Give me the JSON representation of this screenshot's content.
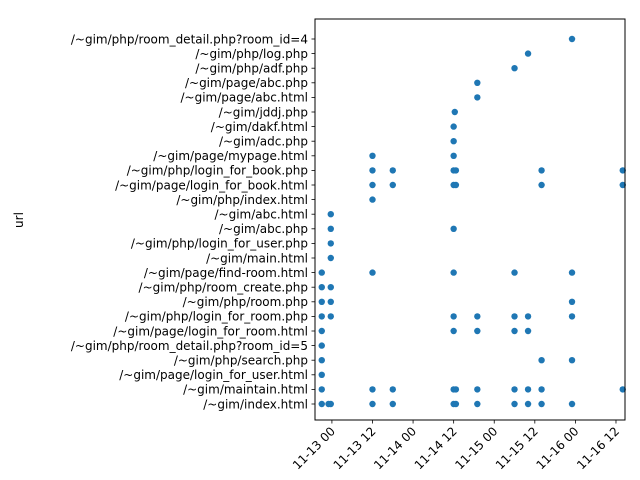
{
  "chart_data": {
    "type": "scatter",
    "title": "",
    "xlabel": "",
    "ylabel": "url",
    "grid": false,
    "x_ticks": [
      "11-13 00",
      "11-13 12",
      "11-14 00",
      "11-14 12",
      "11-15 00",
      "11-15 12",
      "11-16 00",
      "11-16 12"
    ],
    "x_tick_dates": [
      "2023-11-13T00:00",
      "2023-11-13T12:00",
      "2023-11-14T00:00",
      "2023-11-14T12:00",
      "2023-11-15T00:00",
      "2023-11-15T12:00",
      "2023-11-16T00:00",
      "2023-11-16T12:00"
    ],
    "xlim": [
      "2023-11-12T19:00",
      "2023-11-16T14:40"
    ],
    "categories": [
      "/~gim/index.html",
      "/~gim/maintain.html",
      "/~gim/page/login_for_user.html",
      "/~gim/php/search.php",
      "/~gim/php/room_detail.php?room_id=5",
      "/~gim/page/login_for_room.html",
      "/~gim/php/login_for_room.php",
      "/~gim/php/room.php",
      "/~gim/php/room_create.php",
      "/~gim/page/find-room.html",
      "/~gim/main.html",
      "/~gim/php/login_for_user.php",
      "/~gim/abc.php",
      "/~gim/abc.html",
      "/~gim/php/index.html",
      "/~gim/page/login_for_book.html",
      "/~gim/php/login_for_book.php",
      "/~gim/page/mypage.html",
      "/~gim/adc.php",
      "/~gim/dakf.html",
      "/~gim/jddj.php",
      "/~gim/page/abc.html",
      "/~gim/page/abc.php",
      "/~gim/php/adf.php",
      "/~gim/php/log.php",
      "/~gim/php/room_detail.php?room_id=4"
    ],
    "series": [
      {
        "color": "#1f77b4",
        "points": [
          {
            "x": "2023-11-12T21:00",
            "y": "/~gim/index.html"
          },
          {
            "x": "2023-11-12T23:00",
            "y": "/~gim/index.html"
          },
          {
            "x": "2023-11-12T23:40",
            "y": "/~gim/index.html"
          },
          {
            "x": "2023-11-13T12:00",
            "y": "/~gim/index.html"
          },
          {
            "x": "2023-11-13T18:00",
            "y": "/~gim/index.html"
          },
          {
            "x": "2023-11-14T12:00",
            "y": "/~gim/index.html"
          },
          {
            "x": "2023-11-14T12:40",
            "y": "/~gim/index.html"
          },
          {
            "x": "2023-11-14T19:00",
            "y": "/~gim/index.html"
          },
          {
            "x": "2023-11-15T06:00",
            "y": "/~gim/index.html"
          },
          {
            "x": "2023-11-15T10:00",
            "y": "/~gim/index.html"
          },
          {
            "x": "2023-11-15T14:00",
            "y": "/~gim/index.html"
          },
          {
            "x": "2023-11-15T23:00",
            "y": "/~gim/index.html"
          },
          {
            "x": "2023-11-12T21:00",
            "y": "/~gim/maintain.html"
          },
          {
            "x": "2023-11-13T12:00",
            "y": "/~gim/maintain.html"
          },
          {
            "x": "2023-11-13T18:00",
            "y": "/~gim/maintain.html"
          },
          {
            "x": "2023-11-14T12:00",
            "y": "/~gim/maintain.html"
          },
          {
            "x": "2023-11-14T12:40",
            "y": "/~gim/maintain.html"
          },
          {
            "x": "2023-11-14T19:00",
            "y": "/~gim/maintain.html"
          },
          {
            "x": "2023-11-15T06:00",
            "y": "/~gim/maintain.html"
          },
          {
            "x": "2023-11-15T10:00",
            "y": "/~gim/maintain.html"
          },
          {
            "x": "2023-11-15T14:00",
            "y": "/~gim/maintain.html"
          },
          {
            "x": "2023-11-16T14:00",
            "y": "/~gim/maintain.html"
          },
          {
            "x": "2023-11-12T21:00",
            "y": "/~gim/page/login_for_user.html"
          },
          {
            "x": "2023-11-12T21:00",
            "y": "/~gim/php/search.php"
          },
          {
            "x": "2023-11-15T14:00",
            "y": "/~gim/php/search.php"
          },
          {
            "x": "2023-11-15T23:00",
            "y": "/~gim/php/search.php"
          },
          {
            "x": "2023-11-12T21:00",
            "y": "/~gim/php/room_detail.php?room_id=5"
          },
          {
            "x": "2023-11-12T21:00",
            "y": "/~gim/page/login_for_room.html"
          },
          {
            "x": "2023-11-14T12:00",
            "y": "/~gim/page/login_for_room.html"
          },
          {
            "x": "2023-11-14T19:00",
            "y": "/~gim/page/login_for_room.html"
          },
          {
            "x": "2023-11-15T06:00",
            "y": "/~gim/page/login_for_room.html"
          },
          {
            "x": "2023-11-15T10:00",
            "y": "/~gim/page/login_for_room.html"
          },
          {
            "x": "2023-11-12T21:00",
            "y": "/~gim/php/login_for_room.php"
          },
          {
            "x": "2023-11-12T23:40",
            "y": "/~gim/php/login_for_room.php"
          },
          {
            "x": "2023-11-14T12:00",
            "y": "/~gim/php/login_for_room.php"
          },
          {
            "x": "2023-11-14T19:00",
            "y": "/~gim/php/login_for_room.php"
          },
          {
            "x": "2023-11-15T06:00",
            "y": "/~gim/php/login_for_room.php"
          },
          {
            "x": "2023-11-15T10:00",
            "y": "/~gim/php/login_for_room.php"
          },
          {
            "x": "2023-11-15T23:00",
            "y": "/~gim/php/login_for_room.php"
          },
          {
            "x": "2023-11-12T21:00",
            "y": "/~gim/php/room.php"
          },
          {
            "x": "2023-11-12T23:40",
            "y": "/~gim/php/room.php"
          },
          {
            "x": "2023-11-15T23:00",
            "y": "/~gim/php/room.php"
          },
          {
            "x": "2023-11-12T21:00",
            "y": "/~gim/php/room_create.php"
          },
          {
            "x": "2023-11-12T23:40",
            "y": "/~gim/php/room_create.php"
          },
          {
            "x": "2023-11-12T21:00",
            "y": "/~gim/page/find-room.html"
          },
          {
            "x": "2023-11-13T12:00",
            "y": "/~gim/page/find-room.html"
          },
          {
            "x": "2023-11-14T12:00",
            "y": "/~gim/page/find-room.html"
          },
          {
            "x": "2023-11-15T06:00",
            "y": "/~gim/page/find-room.html"
          },
          {
            "x": "2023-11-15T23:00",
            "y": "/~gim/page/find-room.html"
          },
          {
            "x": "2023-11-12T23:40",
            "y": "/~gim/main.html"
          },
          {
            "x": "2023-11-12T23:40",
            "y": "/~gim/php/login_for_user.php"
          },
          {
            "x": "2023-11-12T23:40",
            "y": "/~gim/abc.php"
          },
          {
            "x": "2023-11-14T12:00",
            "y": "/~gim/abc.php"
          },
          {
            "x": "2023-11-12T23:40",
            "y": "/~gim/abc.html"
          },
          {
            "x": "2023-11-13T12:00",
            "y": "/~gim/php/index.html"
          },
          {
            "x": "2023-11-13T12:00",
            "y": "/~gim/page/login_for_book.html"
          },
          {
            "x": "2023-11-13T18:00",
            "y": "/~gim/page/login_for_book.html"
          },
          {
            "x": "2023-11-14T12:00",
            "y": "/~gim/page/login_for_book.html"
          },
          {
            "x": "2023-11-14T12:40",
            "y": "/~gim/page/login_for_book.html"
          },
          {
            "x": "2023-11-15T14:00",
            "y": "/~gim/page/login_for_book.html"
          },
          {
            "x": "2023-11-16T14:00",
            "y": "/~gim/page/login_for_book.html"
          },
          {
            "x": "2023-11-13T12:00",
            "y": "/~gim/php/login_for_book.php"
          },
          {
            "x": "2023-11-13T18:00",
            "y": "/~gim/php/login_for_book.php"
          },
          {
            "x": "2023-11-14T12:00",
            "y": "/~gim/php/login_for_book.php"
          },
          {
            "x": "2023-11-14T12:40",
            "y": "/~gim/php/login_for_book.php"
          },
          {
            "x": "2023-11-15T14:00",
            "y": "/~gim/php/login_for_book.php"
          },
          {
            "x": "2023-11-16T14:00",
            "y": "/~gim/php/login_for_book.php"
          },
          {
            "x": "2023-11-13T12:00",
            "y": "/~gim/page/mypage.html"
          },
          {
            "x": "2023-11-14T12:00",
            "y": "/~gim/page/mypage.html"
          },
          {
            "x": "2023-11-14T12:00",
            "y": "/~gim/adc.php"
          },
          {
            "x": "2023-11-14T12:00",
            "y": "/~gim/dakf.html"
          },
          {
            "x": "2023-11-14T12:20",
            "y": "/~gim/jddj.php"
          },
          {
            "x": "2023-11-14T19:00",
            "y": "/~gim/page/abc.html"
          },
          {
            "x": "2023-11-14T19:00",
            "y": "/~gim/page/abc.php"
          },
          {
            "x": "2023-11-15T06:00",
            "y": "/~gim/php/adf.php"
          },
          {
            "x": "2023-11-15T10:00",
            "y": "/~gim/php/log.php"
          },
          {
            "x": "2023-11-15T23:00",
            "y": "/~gim/php/room_detail.php?room_id=4"
          }
        ]
      }
    ]
  }
}
